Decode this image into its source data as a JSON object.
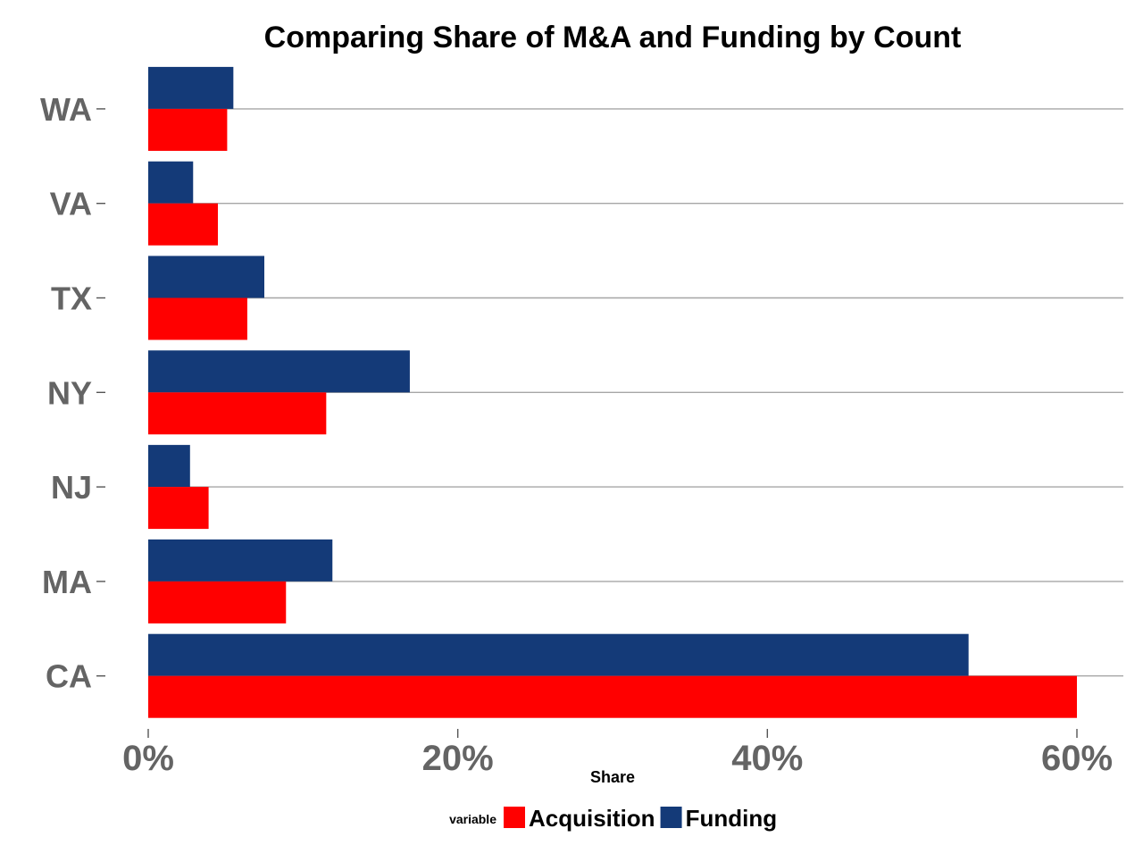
{
  "chart_data": {
    "type": "bar",
    "orientation": "horizontal",
    "title": "Comparing Share of M&A and Funding by Count",
    "xlabel": "Share",
    "ylabel": "",
    "categories": [
      "CA",
      "MA",
      "NJ",
      "NY",
      "TX",
      "VA",
      "WA"
    ],
    "series": [
      {
        "name": "Acquisition",
        "color": "#ff0000",
        "values": [
          60.0,
          8.9,
          3.9,
          11.5,
          6.4,
          4.5,
          5.1
        ]
      },
      {
        "name": "Funding",
        "color": "#143a78",
        "values": [
          53.0,
          11.9,
          2.7,
          16.9,
          7.5,
          2.9,
          5.5
        ]
      }
    ],
    "xlim": [
      0,
      62
    ],
    "xticks": [
      0,
      20,
      40,
      60
    ],
    "xtick_labels": [
      "0%",
      "20%",
      "40%",
      "60%"
    ],
    "grid": "horizontal",
    "legend": {
      "title": "variable",
      "placement": "bottom",
      "entries": [
        "Acquisition",
        "Funding"
      ]
    }
  }
}
